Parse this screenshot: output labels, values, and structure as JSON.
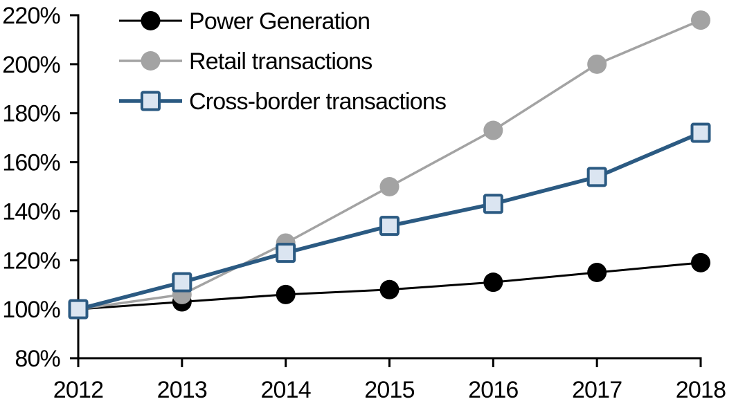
{
  "chart_data": {
    "type": "line",
    "title": "",
    "xlabel": "",
    "ylabel": "",
    "x_labels": [
      "2012",
      "2013",
      "2014",
      "2015",
      "2016",
      "2017",
      "2018"
    ],
    "y_ticks": [
      80,
      100,
      120,
      140,
      160,
      180,
      200,
      220
    ],
    "y_tick_labels": [
      "80%",
      "100%",
      "120%",
      "140%",
      "160%",
      "180%",
      "200%",
      "220%"
    ],
    "ylim": [
      80,
      220
    ],
    "grid": false,
    "legend_position": "top-left-inside",
    "axis_color": "#000000",
    "background_color": "#FFFFFF",
    "series": [
      {
        "name": "Power Generation",
        "color": "#000000",
        "marker": "circle",
        "marker_fill": "#000000",
        "line_width": 3,
        "values": [
          100,
          103,
          106,
          108,
          111,
          115,
          119
        ]
      },
      {
        "name": "Retail transactions",
        "color": "#A3A3A3",
        "marker": "circle",
        "marker_fill": "#A3A3A3",
        "line_width": 3.5,
        "values": [
          100,
          106,
          127,
          150,
          173,
          200,
          218
        ]
      },
      {
        "name": "Cross-border transactions",
        "color": "#2B5A82",
        "marker": "square",
        "marker_fill": "#DBE5F1",
        "marker_border": "#2B5A82",
        "line_width": 5.5,
        "values": [
          100,
          111,
          123,
          134,
          143,
          154,
          172
        ]
      }
    ]
  }
}
